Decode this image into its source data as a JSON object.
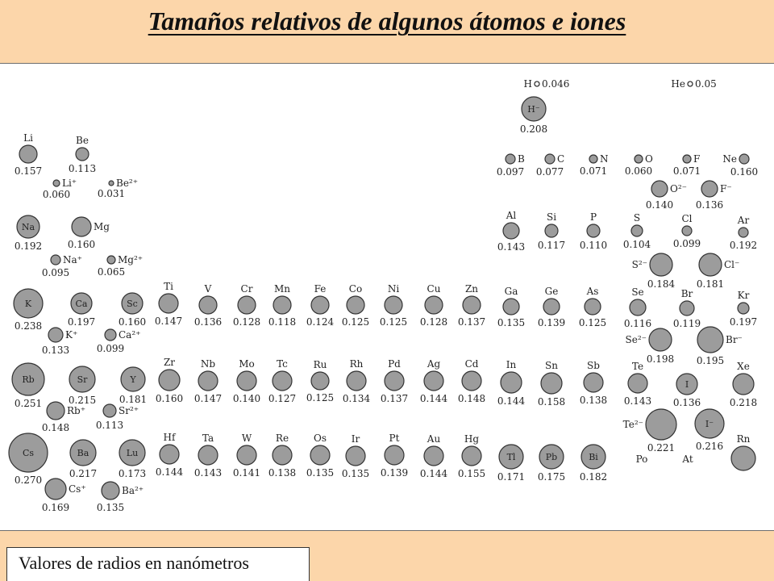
{
  "title": "Tamaños relativos de algunos átomos e iones",
  "caption": "Valores de radios en nanómetros",
  "colors": {
    "band": "#fcd6aa",
    "atom_fill": "#9c9c9c",
    "atom_stroke": "#333333"
  },
  "atoms": [
    {
      "s": "H",
      "v": "0.046",
      "r": 3,
      "style": "inline"
    },
    {
      "s": "He",
      "v": "0.05",
      "r": 3,
      "style": "inline"
    },
    {
      "s": "H⁻",
      "v": "0.208",
      "r": 15,
      "style": "inside"
    },
    {
      "s": "Li",
      "v": "0.157",
      "r": 11,
      "style": "above"
    },
    {
      "s": "Be",
      "v": "0.113",
      "r": 8,
      "style": "above"
    },
    {
      "s": "Li⁺",
      "v": "0.060",
      "r": 4,
      "style": "side"
    },
    {
      "s": "Be²⁺",
      "v": "0.031",
      "r": 3,
      "style": "side"
    },
    {
      "s": "B",
      "v": "0.097",
      "r": 6,
      "style": "side"
    },
    {
      "s": "C",
      "v": "0.077",
      "r": 6,
      "style": "side"
    },
    {
      "s": "N",
      "v": "0.071",
      "r": 5,
      "style": "side"
    },
    {
      "s": "O",
      "v": "0.060",
      "r": 5,
      "style": "side"
    },
    {
      "s": "F",
      "v": "0.071",
      "r": 5,
      "style": "side"
    },
    {
      "s": "Ne",
      "v": "0.160",
      "r": 6,
      "style": "sideleft"
    },
    {
      "s": "O²⁻",
      "v": "0.140",
      "r": 10,
      "style": "side"
    },
    {
      "s": "F⁻",
      "v": "0.136",
      "r": 10,
      "style": "side"
    },
    {
      "s": "Na",
      "v": "0.192",
      "r": 14,
      "style": "inside"
    },
    {
      "s": "Mg",
      "v": "0.160",
      "r": 12,
      "style": "side"
    },
    {
      "s": "Na⁺",
      "v": "0.095",
      "r": 6,
      "style": "side"
    },
    {
      "s": "Mg²⁺",
      "v": "0.065",
      "r": 5,
      "style": "side"
    },
    {
      "s": "Al",
      "v": "0.143",
      "r": 10,
      "style": "above"
    },
    {
      "s": "Si",
      "v": "0.117",
      "r": 8,
      "style": "above"
    },
    {
      "s": "P",
      "v": "0.110",
      "r": 8,
      "style": "above"
    },
    {
      "s": "S",
      "v": "0.104",
      "r": 7,
      "style": "above"
    },
    {
      "s": "Cl",
      "v": "0.099",
      "r": 6,
      "style": "above"
    },
    {
      "s": "Ar",
      "v": "0.192",
      "r": 6,
      "style": "above"
    },
    {
      "s": "S²⁻",
      "v": "0.184",
      "r": 14,
      "style": "sideleft"
    },
    {
      "s": "Cl⁻",
      "v": "0.181",
      "r": 14,
      "style": "side"
    },
    {
      "s": "K",
      "v": "0.238",
      "r": 18,
      "style": "inside"
    },
    {
      "s": "Ca",
      "v": "0.197",
      "r": 13,
      "style": "inside"
    },
    {
      "s": "Sc",
      "v": "0.160",
      "r": 13,
      "style": "inside"
    },
    {
      "s": "K⁺",
      "v": "0.133",
      "r": 9,
      "style": "side"
    },
    {
      "s": "Ca²⁺",
      "v": "0.099",
      "r": 7,
      "style": "side"
    },
    {
      "s": "Ti",
      "v": "0.147",
      "r": 12,
      "style": "above"
    },
    {
      "s": "V",
      "v": "0.136",
      "r": 11,
      "style": "above"
    },
    {
      "s": "Cr",
      "v": "0.128",
      "r": 11,
      "style": "above"
    },
    {
      "s": "Mn",
      "v": "0.118",
      "r": 11,
      "style": "above"
    },
    {
      "s": "Fe",
      "v": "0.124",
      "r": 11,
      "style": "above"
    },
    {
      "s": "Co",
      "v": "0.125",
      "r": 11,
      "style": "above"
    },
    {
      "s": "Ni",
      "v": "0.125",
      "r": 11,
      "style": "above"
    },
    {
      "s": "Cu",
      "v": "0.128",
      "r": 11,
      "style": "above"
    },
    {
      "s": "Zn",
      "v": "0.137",
      "r": 11,
      "style": "above"
    },
    {
      "s": "Ga",
      "v": "0.135",
      "r": 10,
      "style": "above"
    },
    {
      "s": "Ge",
      "v": "0.139",
      "r": 10,
      "style": "above"
    },
    {
      "s": "As",
      "v": "0.125",
      "r": 10,
      "style": "above"
    },
    {
      "s": "Se",
      "v": "0.116",
      "r": 10,
      "style": "above"
    },
    {
      "s": "Br",
      "v": "0.119",
      "r": 9,
      "style": "above"
    },
    {
      "s": "Kr",
      "v": "0.197",
      "r": 7,
      "style": "above"
    },
    {
      "s": "Se²⁻",
      "v": "0.198",
      "r": 14,
      "style": "sideleft"
    },
    {
      "s": "Br⁻",
      "v": "0.195",
      "r": 16,
      "style": "side"
    },
    {
      "s": "Rb",
      "v": "0.251",
      "r": 20,
      "style": "inside"
    },
    {
      "s": "Sr",
      "v": "0.215",
      "r": 16,
      "style": "inside"
    },
    {
      "s": "Y",
      "v": "0.181",
      "r": 15,
      "style": "inside"
    },
    {
      "s": "Rb⁺",
      "v": "0.148",
      "r": 11,
      "style": "side"
    },
    {
      "s": "Sr²⁺",
      "v": "0.113",
      "r": 8,
      "style": "side"
    },
    {
      "s": "Zr",
      "v": "0.160",
      "r": 13,
      "style": "above"
    },
    {
      "s": "Nb",
      "v": "0.147",
      "r": 12,
      "style": "above"
    },
    {
      "s": "Mo",
      "v": "0.140",
      "r": 12,
      "style": "above"
    },
    {
      "s": "Tc",
      "v": "0.127",
      "r": 12,
      "style": "above"
    },
    {
      "s": "Ru",
      "v": "0.125",
      "r": 11,
      "style": "above"
    },
    {
      "s": "Rh",
      "v": "0.134",
      "r": 12,
      "style": "above"
    },
    {
      "s": "Pd",
      "v": "0.137",
      "r": 12,
      "style": "above"
    },
    {
      "s": "Ag",
      "v": "0.144",
      "r": 12,
      "style": "above"
    },
    {
      "s": "Cd",
      "v": "0.148",
      "r": 12,
      "style": "above"
    },
    {
      "s": "In",
      "v": "0.144",
      "r": 13,
      "style": "above"
    },
    {
      "s": "Sn",
      "v": "0.158",
      "r": 13,
      "style": "above"
    },
    {
      "s": "Sb",
      "v": "0.138",
      "r": 12,
      "style": "above"
    },
    {
      "s": "Te",
      "v": "0.143",
      "r": 12,
      "style": "above"
    },
    {
      "s": "I",
      "v": "0.136",
      "r": 13,
      "style": "inside"
    },
    {
      "s": "Xe",
      "v": "0.218",
      "r": 13,
      "style": "above"
    },
    {
      "s": "Te²⁻",
      "v": "0.221",
      "r": 19,
      "style": "sideleft"
    },
    {
      "s": "I⁻",
      "v": "0.216",
      "r": 18,
      "style": "inside"
    },
    {
      "s": "Cs",
      "v": "0.270",
      "r": 24,
      "style": "inside"
    },
    {
      "s": "Ba",
      "v": "0.217",
      "r": 16,
      "style": "inside"
    },
    {
      "s": "Lu",
      "v": "0.173",
      "r": 16,
      "style": "inside"
    },
    {
      "s": "Cs⁺",
      "v": "0.169",
      "r": 13,
      "style": "side"
    },
    {
      "s": "Ba²⁺",
      "v": "0.135",
      "r": 11,
      "style": "side"
    },
    {
      "s": "Hf",
      "v": "0.144",
      "r": 12,
      "style": "above"
    },
    {
      "s": "Ta",
      "v": "0.143",
      "r": 12,
      "style": "above"
    },
    {
      "s": "W",
      "v": "0.141",
      "r": 12,
      "style": "above"
    },
    {
      "s": "Re",
      "v": "0.138",
      "r": 12,
      "style": "above"
    },
    {
      "s": "Os",
      "v": "0.135",
      "r": 12,
      "style": "above"
    },
    {
      "s": "Ir",
      "v": "0.135",
      "r": 12,
      "style": "above"
    },
    {
      "s": "Pt",
      "v": "0.139",
      "r": 12,
      "style": "above"
    },
    {
      "s": "Au",
      "v": "0.144",
      "r": 12,
      "style": "above"
    },
    {
      "s": "Hg",
      "v": "0.155",
      "r": 12,
      "style": "above"
    },
    {
      "s": "Tl",
      "v": "0.171",
      "r": 15,
      "style": "inside"
    },
    {
      "s": "Pb",
      "v": "0.175",
      "r": 15,
      "style": "inside"
    },
    {
      "s": "Bi",
      "v": "0.182",
      "r": 15,
      "style": "inside"
    },
    {
      "s": "Po",
      "v": "",
      "r": 0,
      "style": "label"
    },
    {
      "s": "At",
      "v": "",
      "r": 0,
      "style": "label"
    },
    {
      "s": "Rn",
      "v": "",
      "r": 15,
      "style": "above"
    }
  ]
}
